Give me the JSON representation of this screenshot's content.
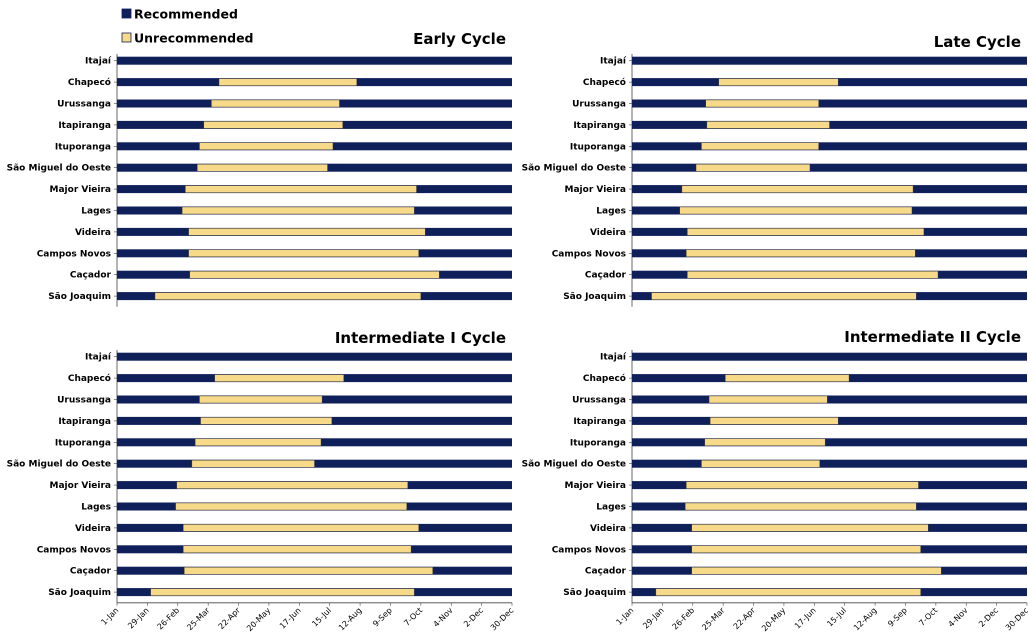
{
  "legend": [
    {
      "label": "Recommended",
      "color": "#0f1f5a"
    },
    {
      "label": "Unrecommended",
      "color": "#f7d98a"
    }
  ],
  "x_ticks": [
    "1-Jan",
    "29-Jan",
    "26-Feb",
    "25-Mar",
    "22-Apr",
    "20-May",
    "17-Jun",
    "15-Jul",
    "12-Aug",
    "9-Sep",
    "7-Oct",
    "4-Nov",
    "2-Dec",
    "30-Dec"
  ],
  "chart_data": [
    {
      "type": "bar",
      "title": "Early Cycle",
      "xlim": [
        1,
        365
      ],
      "categories": [
        "Itajaí",
        "Chapecó",
        "Urussanga",
        "Itapiranga",
        "Ituporanga",
        "São Miguel do Oeste",
        "Major Vieira",
        "Lages",
        "Videira",
        "Campos Novos",
        "Caçador",
        "São Joaquim"
      ],
      "series": [
        {
          "name": "Unrecommended",
          "ranges": [
            null,
            [
              95,
              222
            ],
            [
              88,
              206
            ],
            [
              81,
              209
            ],
            [
              77,
              200
            ],
            [
              75,
              195
            ],
            [
              64,
              277
            ],
            [
              61,
              275
            ],
            [
              67,
              285
            ],
            [
              67,
              279
            ],
            [
              68,
              298
            ],
            [
              36,
              281
            ]
          ]
        }
      ]
    },
    {
      "type": "bar",
      "title": "Late Cycle",
      "xlim": [
        1,
        365
      ],
      "categories": [
        "Itajaí",
        "Chapecó",
        "Urussanga",
        "Itapiranga",
        "Ituporanga",
        "São Miguel do Oeste",
        "Major Vieira",
        "Lages",
        "Videira",
        "Campos Novos",
        "Caçador",
        "São Joaquim"
      ],
      "series": [
        {
          "name": "Unrecommended",
          "ranges": [
            null,
            [
              81,
              191
            ],
            [
              69,
              173
            ],
            [
              70,
              183
            ],
            [
              65,
              173
            ],
            [
              60,
              165
            ],
            [
              47,
              260
            ],
            [
              45,
              259
            ],
            [
              52,
              270
            ],
            [
              51,
              262
            ],
            [
              52,
              283
            ],
            [
              19,
              263
            ]
          ]
        }
      ]
    },
    {
      "type": "bar",
      "title": "Intermediate I Cycle",
      "xlim": [
        1,
        365
      ],
      "categories": [
        "Itajaí",
        "Chapecó",
        "Urussanga",
        "Itapiranga",
        "Ituporanga",
        "São Miguel do Oeste",
        "Major Vieira",
        "Lages",
        "Videira",
        "Campos Novos",
        "Caçador",
        "São Joaquim"
      ],
      "series": [
        {
          "name": "Unrecommended",
          "ranges": [
            null,
            [
              91,
              210
            ],
            [
              77,
              190
            ],
            [
              78,
              199
            ],
            [
              73,
              189
            ],
            [
              70,
              183
            ],
            [
              56,
              269
            ],
            [
              55,
              268
            ],
            [
              62,
              279
            ],
            [
              62,
              272
            ],
            [
              63,
              292
            ],
            [
              32,
              275
            ]
          ]
        }
      ]
    },
    {
      "type": "bar",
      "title": "Intermediate II Cycle",
      "xlim": [
        1,
        365
      ],
      "categories": [
        "Itajaí",
        "Chapecó",
        "Urussanga",
        "Itapiranga",
        "Ituporanga",
        "São Miguel do Oeste",
        "Major Vieira",
        "Lages",
        "Videira",
        "Campos Novos",
        "Caçador",
        "São Joaquim"
      ],
      "series": [
        {
          "name": "Unrecommended",
          "ranges": [
            null,
            [
              87,
              201
            ],
            [
              72,
              181
            ],
            [
              73,
              191
            ],
            [
              68,
              179
            ],
            [
              65,
              174
            ],
            [
              51,
              265
            ],
            [
              50,
              263
            ],
            [
              56,
              274
            ],
            [
              56,
              267
            ],
            [
              56,
              286
            ],
            [
              23,
              267
            ]
          ]
        }
      ]
    }
  ]
}
